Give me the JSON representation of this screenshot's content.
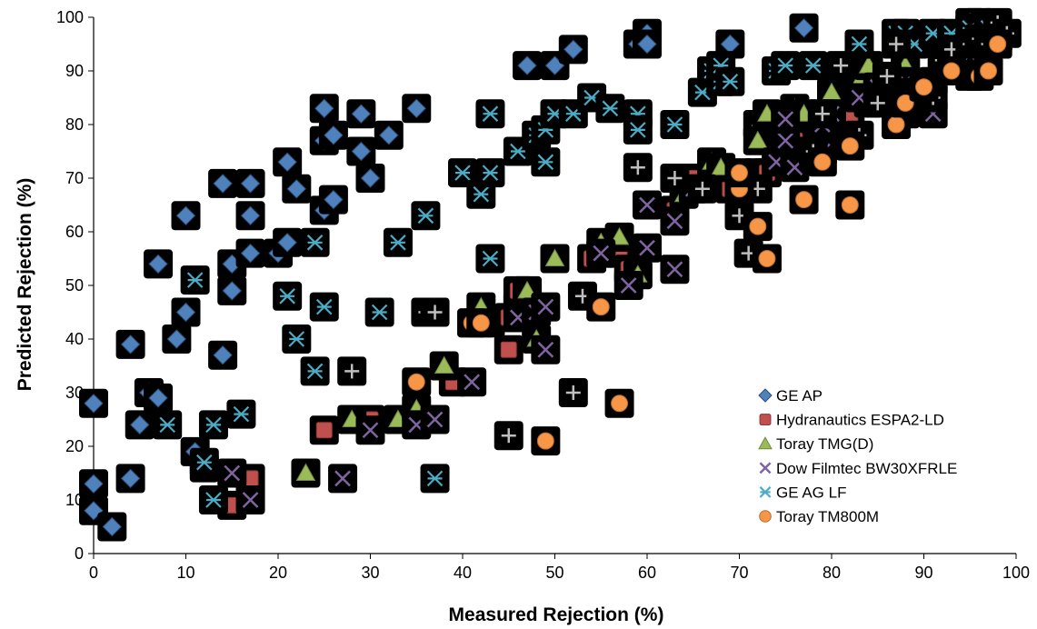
{
  "chart_data": {
    "type": "scatter",
    "title": "",
    "xlabel": "Measured Rejection (%)",
    "ylabel": "Predicted Rejection (%)",
    "xlim": [
      0,
      100
    ],
    "ylim": [
      0,
      100
    ],
    "x_ticks": [
      "0",
      "10",
      "20",
      "30",
      "40",
      "50",
      "60",
      "70",
      "80",
      "90",
      "100"
    ],
    "y_ticks": [
      "0",
      "10",
      "20",
      "30",
      "40",
      "50",
      "60",
      "70",
      "80",
      "90",
      "100"
    ],
    "grid": false,
    "legend_position": "bottom-right",
    "series": [
      {
        "name": "GE AP",
        "marker": "diamond",
        "color": "#4f81bd",
        "points": [
          [
            0,
            28
          ],
          [
            0,
            13
          ],
          [
            0,
            8
          ],
          [
            2,
            5
          ],
          [
            4,
            14
          ],
          [
            4,
            39
          ],
          [
            5,
            24
          ],
          [
            6,
            30
          ],
          [
            7,
            29
          ],
          [
            7,
            54
          ],
          [
            9,
            40
          ],
          [
            10,
            45
          ],
          [
            10,
            63
          ],
          [
            11,
            19
          ],
          [
            12,
            16
          ],
          [
            14,
            37
          ],
          [
            14,
            69
          ],
          [
            15,
            54
          ],
          [
            15,
            49
          ],
          [
            17,
            69
          ],
          [
            17,
            56
          ],
          [
            17,
            63
          ],
          [
            20,
            56
          ],
          [
            21,
            58
          ],
          [
            21,
            73
          ],
          [
            22,
            68
          ],
          [
            25,
            64
          ],
          [
            25,
            77
          ],
          [
            25,
            83
          ],
          [
            26,
            78
          ],
          [
            26,
            66
          ],
          [
            29,
            82
          ],
          [
            29,
            75
          ],
          [
            30,
            70
          ],
          [
            32,
            78
          ],
          [
            35,
            83
          ],
          [
            47,
            91
          ],
          [
            50,
            91
          ],
          [
            52,
            94
          ],
          [
            59,
            95
          ],
          [
            60,
            97
          ],
          [
            60,
            95
          ],
          [
            69,
            95
          ],
          [
            77,
            98
          ],
          [
            95,
            97
          ],
          [
            96,
            99
          ]
        ]
      },
      {
        "name": "Hydranautics ESPA2-LD",
        "marker": "square",
        "color": "#c0504d",
        "points": [
          [
            15,
            9
          ],
          [
            17,
            14
          ],
          [
            25,
            23
          ],
          [
            30,
            25
          ],
          [
            39,
            32
          ],
          [
            41,
            43
          ],
          [
            43,
            43
          ],
          [
            45,
            38
          ],
          [
            45,
            44
          ],
          [
            46,
            46
          ],
          [
            46,
            49
          ],
          [
            54,
            55
          ],
          [
            57,
            56
          ],
          [
            58,
            53
          ],
          [
            63,
            64
          ],
          [
            65,
            70
          ],
          [
            69,
            68
          ],
          [
            72,
            71
          ],
          [
            73,
            71
          ],
          [
            76,
            77
          ],
          [
            77,
            75
          ],
          [
            82,
            81
          ],
          [
            84,
            84
          ],
          [
            87,
            86
          ],
          [
            88,
            90
          ],
          [
            91,
            88
          ],
          [
            93,
            90
          ],
          [
            95,
            89
          ],
          [
            96,
            94
          ],
          [
            98,
            96
          ]
        ]
      },
      {
        "name": "Toray TMG(D)",
        "marker": "triangle",
        "color": "#9bbb59",
        "points": [
          [
            23,
            15
          ],
          [
            28,
            25
          ],
          [
            33,
            25
          ],
          [
            35,
            27
          ],
          [
            38,
            35
          ],
          [
            42,
            46
          ],
          [
            47,
            47
          ],
          [
            47,
            49
          ],
          [
            48,
            40
          ],
          [
            50,
            55
          ],
          [
            55,
            58
          ],
          [
            57,
            59
          ],
          [
            59,
            52
          ],
          [
            64,
            67
          ],
          [
            67,
            73
          ],
          [
            68,
            72
          ],
          [
            72,
            80
          ],
          [
            72,
            77
          ],
          [
            73,
            82
          ],
          [
            76,
            83
          ],
          [
            77,
            82
          ],
          [
            80,
            86
          ],
          [
            83,
            88
          ],
          [
            84,
            91
          ],
          [
            88,
            91
          ],
          [
            95,
            99
          ],
          [
            96,
            97
          ]
        ]
      },
      {
        "name": "Dow Filmtec BW30XFRLE",
        "marker": "x",
        "color": "#8064a2",
        "points": [
          [
            15,
            15
          ],
          [
            17,
            10
          ],
          [
            27,
            14
          ],
          [
            30,
            23
          ],
          [
            35,
            24
          ],
          [
            37,
            25
          ],
          [
            41,
            32
          ],
          [
            46,
            44
          ],
          [
            48,
            45
          ],
          [
            49,
            46
          ],
          [
            49,
            38
          ],
          [
            55,
            56
          ],
          [
            58,
            50
          ],
          [
            60,
            57
          ],
          [
            60,
            65
          ],
          [
            63,
            62
          ],
          [
            63,
            53
          ],
          [
            65,
            68
          ],
          [
            70,
            70
          ],
          [
            74,
            73
          ],
          [
            75,
            77
          ],
          [
            75,
            81
          ],
          [
            76,
            72
          ],
          [
            79,
            80
          ],
          [
            79,
            75
          ],
          [
            80,
            82
          ],
          [
            83,
            85
          ],
          [
            85,
            87
          ],
          [
            87,
            88
          ],
          [
            88,
            88
          ],
          [
            91,
            82
          ],
          [
            92,
            91
          ],
          [
            95,
            93
          ],
          [
            97,
            96
          ]
        ]
      },
      {
        "name": "GE AG LF",
        "marker": "asterisk",
        "color": "#4bacc6",
        "points": [
          [
            8,
            24
          ],
          [
            11,
            51
          ],
          [
            12,
            17
          ],
          [
            13,
            10
          ],
          [
            13,
            24
          ],
          [
            16,
            26
          ],
          [
            21,
            48
          ],
          [
            22,
            40
          ],
          [
            24,
            34
          ],
          [
            24,
            58
          ],
          [
            25,
            46
          ],
          [
            31,
            45
          ],
          [
            33,
            58
          ],
          [
            36,
            63
          ],
          [
            37,
            14
          ],
          [
            40,
            71
          ],
          [
            42,
            67
          ],
          [
            43,
            71
          ],
          [
            43,
            55
          ],
          [
            43,
            82
          ],
          [
            46,
            75
          ],
          [
            48,
            78
          ],
          [
            49,
            79
          ],
          [
            49,
            73
          ],
          [
            50,
            82
          ],
          [
            52,
            82
          ],
          [
            54,
            85
          ],
          [
            56,
            83
          ],
          [
            59,
            82
          ],
          [
            59,
            79
          ],
          [
            63,
            80
          ],
          [
            66,
            86
          ],
          [
            67,
            90
          ],
          [
            68,
            88
          ],
          [
            68,
            91
          ],
          [
            69,
            88
          ],
          [
            74,
            90
          ],
          [
            75,
            91
          ],
          [
            78,
            91
          ],
          [
            83,
            95
          ],
          [
            87,
            97
          ],
          [
            88,
            97
          ],
          [
            89,
            95
          ],
          [
            91,
            97
          ],
          [
            93,
            97
          ],
          [
            95,
            98
          ],
          [
            97,
            98
          ],
          [
            98,
            96
          ]
        ]
      },
      {
        "name": "",
        "marker": "cross",
        "color": "#bfbfbf",
        "points": [
          [
            28,
            34
          ],
          [
            36,
            45
          ],
          [
            37,
            45
          ],
          [
            45,
            22
          ],
          [
            52,
            30
          ],
          [
            53,
            48
          ],
          [
            59,
            72
          ],
          [
            63,
            70
          ],
          [
            66,
            68
          ],
          [
            70,
            63
          ],
          [
            71,
            56
          ],
          [
            72,
            68
          ],
          [
            78,
            75
          ],
          [
            79,
            82
          ],
          [
            81,
            91
          ],
          [
            83,
            78
          ],
          [
            85,
            84
          ],
          [
            86,
            89
          ],
          [
            87,
            95
          ],
          [
            88,
            82
          ],
          [
            89,
            86
          ],
          [
            91,
            85
          ],
          [
            92,
            92
          ],
          [
            93,
            94
          ],
          [
            95,
            95
          ],
          [
            96,
            96
          ],
          [
            97,
            95
          ],
          [
            98,
            99
          ],
          [
            99,
            97
          ]
        ]
      },
      {
        "name": "Toray TM800M",
        "marker": "circle",
        "color": "#f79646",
        "points": [
          [
            35,
            32
          ],
          [
            41,
            43
          ],
          [
            42,
            43
          ],
          [
            49,
            21
          ],
          [
            55,
            46
          ],
          [
            57,
            28
          ],
          [
            70,
            68
          ],
          [
            70,
            71
          ],
          [
            72,
            61
          ],
          [
            73,
            55
          ],
          [
            77,
            66
          ],
          [
            79,
            73
          ],
          [
            82,
            65
          ],
          [
            82,
            76
          ],
          [
            87,
            80
          ],
          [
            88,
            84
          ],
          [
            90,
            87
          ],
          [
            93,
            90
          ],
          [
            96,
            89
          ],
          [
            97,
            90
          ],
          [
            98,
            95
          ]
        ]
      }
    ]
  }
}
